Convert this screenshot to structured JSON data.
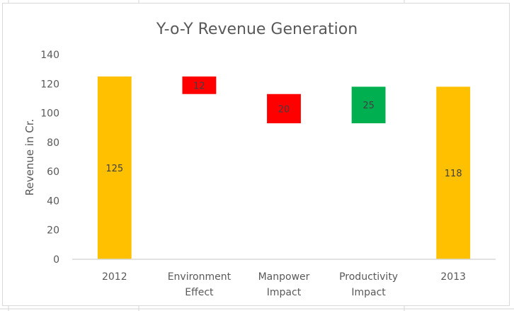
{
  "chart_data": {
    "type": "waterfall",
    "title": "Y-o-Y Revenue Generation",
    "xlabel": "",
    "ylabel": "Revenue in Cr.",
    "ylim": [
      0,
      140
    ],
    "yticks": [
      0,
      20,
      40,
      60,
      80,
      100,
      120,
      140
    ],
    "grid": false,
    "legend": "none",
    "categories": [
      [
        "2012"
      ],
      [
        "Environment",
        "Effect"
      ],
      [
        "Manpower",
        "Impact"
      ],
      [
        "Productivity",
        "Impact"
      ],
      [
        "2013"
      ]
    ],
    "bars": [
      {
        "category": "2012",
        "kind": "total",
        "start": 0,
        "end": 125,
        "label": "125",
        "color": "#FFC000"
      },
      {
        "category": "Environment Effect",
        "kind": "decrease",
        "start": 125,
        "end": 113,
        "label": "12",
        "color": "#FF0000"
      },
      {
        "category": "Manpower Impact",
        "kind": "decrease",
        "start": 113,
        "end": 93,
        "label": "20",
        "color": "#FF0000"
      },
      {
        "category": "Productivity Impact",
        "kind": "increase",
        "start": 93,
        "end": 118,
        "label": "25",
        "color": "#00B050"
      },
      {
        "category": "2013",
        "kind": "total",
        "start": 0,
        "end": 118,
        "label": "118",
        "color": "#FFC000"
      }
    ]
  },
  "colors": {
    "text": "#595959",
    "axis": "#d9d9d9",
    "label": "#404040"
  }
}
